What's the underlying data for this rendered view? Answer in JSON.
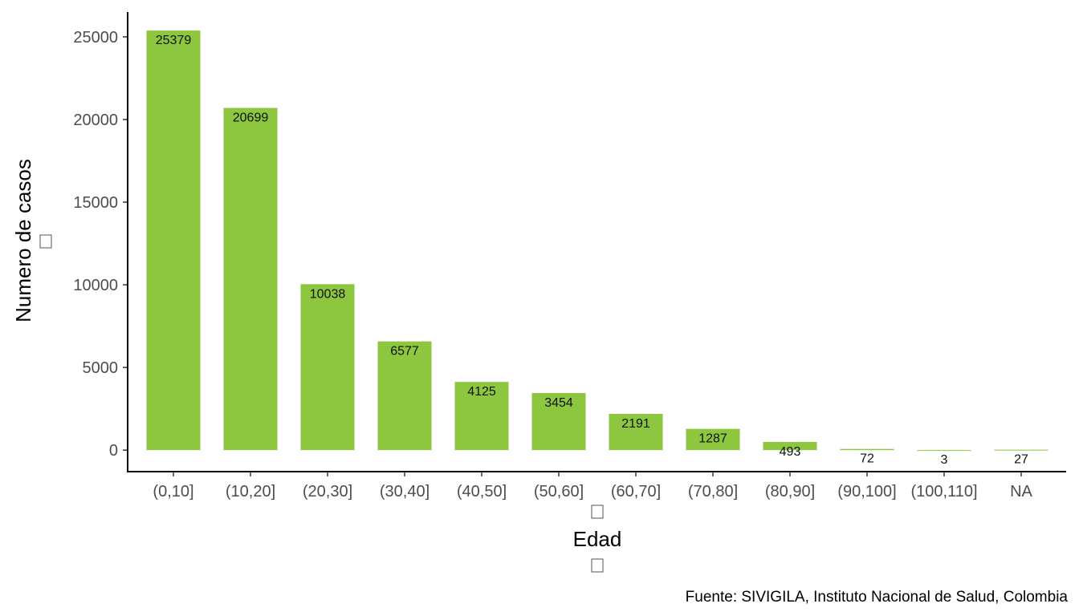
{
  "chart_data": {
    "type": "bar",
    "xlabel": "Edad",
    "ylabel": "Numero de casos",
    "caption": "Fuente: SIVIGILA, Instituto Nacional de Salud, Colombia",
    "categories": [
      "(0,10]",
      "(10,20]",
      "(20,30]",
      "(30,40]",
      "(40,50]",
      "(50,60]",
      "(60,70]",
      "(70,80]",
      "(80,90]",
      "(90,100]",
      "(100,110]",
      "NA"
    ],
    "values": [
      25379,
      20699,
      10038,
      6577,
      4125,
      3454,
      2191,
      1287,
      493,
      72,
      3,
      27
    ],
    "data_labels": [
      "25379",
      "20699",
      "10038",
      "6577",
      "4125",
      "3454",
      "2191",
      "1287",
      "493",
      "72",
      "3",
      "27"
    ],
    "ylim": [
      -1300,
      26500
    ],
    "yticks": [
      0,
      5000,
      10000,
      15000,
      20000,
      25000
    ],
    "ytick_labels": [
      "0",
      "5000",
      "10000",
      "15000",
      "20000",
      "25000"
    ],
    "grid": false,
    "legend": "none",
    "bar_color": "#8DC63F"
  }
}
